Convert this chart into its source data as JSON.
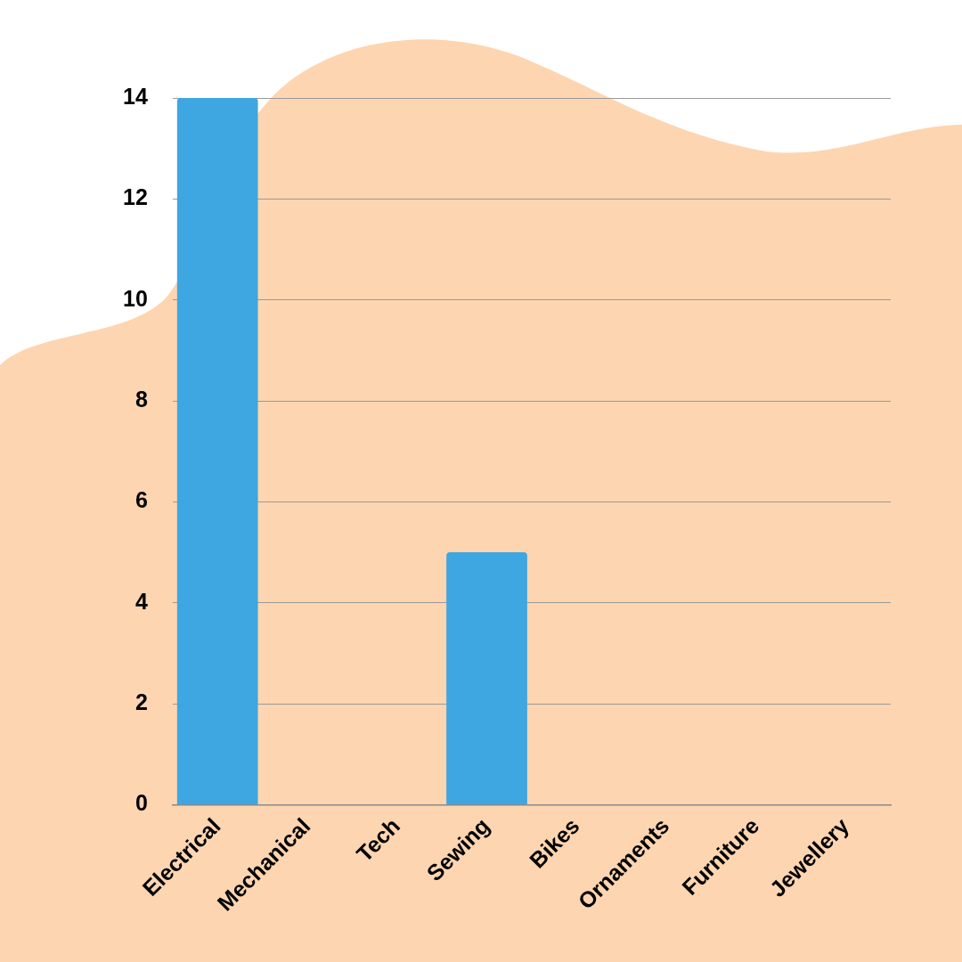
{
  "chart_data": {
    "type": "bar",
    "categories": [
      "Electrical",
      "Mechanical",
      "Tech",
      "Sewing",
      "Bikes",
      "Ornaments",
      "Furniture",
      "Jewellery"
    ],
    "values": [
      14,
      0,
      0,
      5,
      0,
      0,
      0,
      0
    ],
    "color": "#3ea6e0",
    "ylim": [
      0,
      14
    ],
    "yticks": [
      0,
      2,
      4,
      6,
      8,
      10,
      12,
      14
    ],
    "grid": "y",
    "legend": false
  }
}
